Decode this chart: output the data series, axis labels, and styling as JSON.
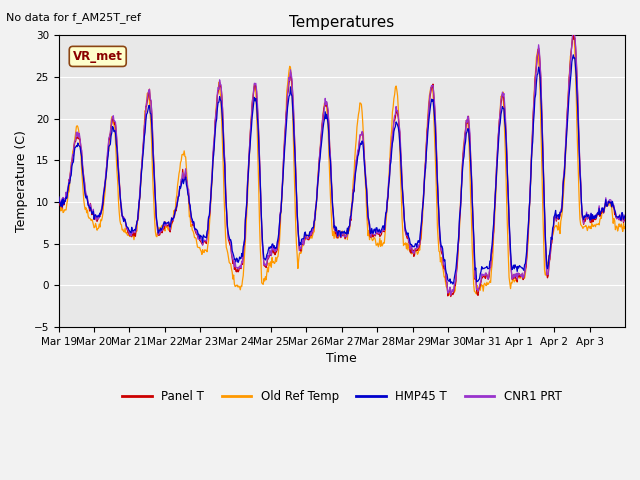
{
  "title": "Temperatures",
  "ylabel": "Temperature (C)",
  "xlabel": "Time",
  "note": "No data for f_AM25T_ref",
  "legend_label": "VR_met",
  "ylim": [
    -5,
    30
  ],
  "yticks": [
    -5,
    0,
    5,
    10,
    15,
    20,
    25,
    30
  ],
  "xtick_labels": [
    "Mar 19",
    "Mar 20",
    "Mar 21",
    "Mar 22",
    "Mar 23",
    "Mar 24",
    "Mar 25",
    "Mar 26",
    "Mar 27",
    "Mar 28",
    "Mar 29",
    "Mar 30",
    "Mar 31",
    "Apr 1",
    "Apr 2",
    "Apr 3"
  ],
  "colors": {
    "panel_t": "#cc0000",
    "old_ref_temp": "#ff9900",
    "hmp45_t": "#0000cc",
    "cnr1_prt": "#9933cc"
  },
  "legend_entries": [
    "Panel T",
    "Old Ref Temp",
    "HMP45 T",
    "CNR1 PRT"
  ],
  "bg_color": "#e8e8e8",
  "grid_color": "#ffffff",
  "figsize": [
    6.4,
    4.8
  ],
  "dpi": 100,
  "n_days": 16,
  "pts_per_day": 48,
  "day_maxima_base": [
    18,
    20,
    23,
    13,
    24,
    24,
    25,
    22,
    18,
    21,
    24,
    20,
    23,
    28,
    30,
    10
  ],
  "day_minima_base": [
    10,
    8,
    6,
    7,
    5,
    2,
    4,
    6,
    6,
    6,
    4,
    -1,
    1,
    1,
    8,
    8
  ],
  "day_maxima_orange": [
    19,
    20,
    23,
    16,
    24,
    24,
    26,
    22,
    22,
    24,
    24,
    20,
    23,
    28,
    30,
    10
  ],
  "day_minima_orange": [
    9,
    7,
    6,
    7,
    4,
    0,
    3,
    6,
    6,
    5,
    4,
    -1,
    0,
    1,
    7,
    7
  ]
}
